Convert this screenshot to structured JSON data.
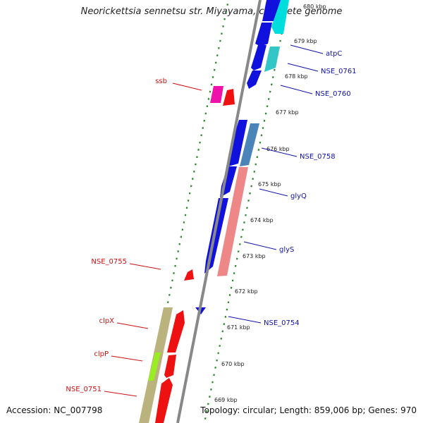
{
  "title": "Neorickettsia sennetsu str. Miyayama, complete genome",
  "accession": "Accession: NC_007798",
  "topology": "Topology: circular; Length: 859,006 bp; Genes: 970",
  "colors": {
    "background": "#ffffff",
    "backbone": "#8a8a8a",
    "scale_dots": "#2a8a2a",
    "forward_label": "#cc1111",
    "reverse_label": "#1111aa"
  },
  "kbp_ticks": [
    "680 kbp",
    "679 kbp",
    "678 kbp",
    "677 kbp",
    "676 kbp",
    "675 kbp",
    "674 kbp",
    "673 kbp",
    "672 kbp",
    "671 kbp",
    "670 kbp",
    "669 kbp"
  ],
  "forward_gene_labels": [
    "ssb",
    "NSE_0755",
    "clpX",
    "clpP",
    "NSE_0751"
  ],
  "reverse_gene_labels": [
    "atpC",
    "NSE_0761",
    "NSE_0760",
    "NSE_0758",
    "glyQ",
    "glyS",
    "NSE_0754"
  ]
}
